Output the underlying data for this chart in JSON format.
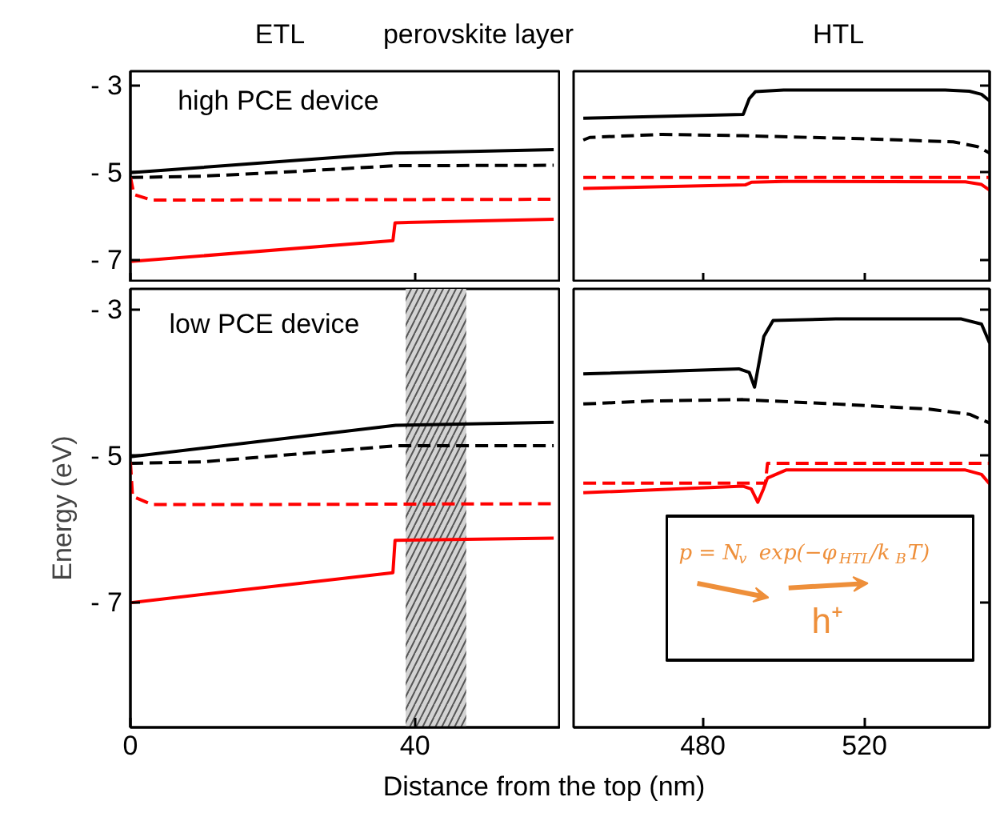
{
  "chart_data": [
    {
      "type": "line",
      "xlim": [
        0,
        60.5
      ],
      "xticks": [
        0,
        40
      ],
      "ylim": [
        -7.52,
        -2.67
      ],
      "yticks": [
        {
          "value": -3,
          "label": "- 3"
        },
        {
          "value": -5,
          "label": "- 5"
        },
        {
          "value": -7,
          "label": "- 7"
        }
      ],
      "tick_labels": "y",
      "annotations": [
        "ETL",
        "perovskite layer",
        "high PCE device"
      ],
      "series": [
        {
          "color": "#000000",
          "line_style": "solid",
          "x": [
            0,
            37.3,
            59.5
          ],
          "values": [
            -5.0,
            -4.55,
            -4.47
          ]
        },
        {
          "color": "#000000",
          "line_style": "dashed",
          "x": [
            0,
            10,
            20,
            37.3,
            59.5
          ],
          "values": [
            -5.11,
            -5.08,
            -5.0,
            -4.84,
            -4.83
          ]
        },
        {
          "color": "#ff0000",
          "line_style": "dashed",
          "x": [
            0,
            0.5,
            3,
            59.5
          ],
          "values": [
            -5.1,
            -5.5,
            -5.63,
            -5.61
          ]
        },
        {
          "color": "#ff0000",
          "line_style": "solid",
          "x": [
            0,
            36.9,
            37.2,
            59.5
          ],
          "values": [
            -7.04,
            -6.56,
            -6.15,
            -6.07
          ]
        }
      ]
    },
    {
      "type": "line",
      "xlim": [
        448,
        551
      ],
      "xticks": [
        480,
        520
      ],
      "ylim": [
        -7.52,
        -2.67
      ],
      "yticks": [
        {
          "value": -3,
          "label": null
        },
        {
          "value": -5,
          "label": null
        },
        {
          "value": -7,
          "label": null
        }
      ],
      "tick_labels": false,
      "annotations": [
        "HTL"
      ],
      "series": [
        {
          "color": "#000000",
          "line_style": "solid",
          "x": [
            450.4,
            490,
            491.5,
            493,
            500,
            540,
            546,
            549,
            551
          ],
          "values": [
            -3.75,
            -3.66,
            -3.3,
            -3.14,
            -3.1,
            -3.1,
            -3.13,
            -3.2,
            -3.35
          ]
        },
        {
          "color": "#000000",
          "line_style": "dashed",
          "x": [
            450.4,
            452,
            470,
            490,
            519,
            542,
            548,
            551
          ],
          "values": [
            -4.25,
            -4.19,
            -4.12,
            -4.15,
            -4.22,
            -4.29,
            -4.4,
            -4.55
          ]
        },
        {
          "color": "#ff0000",
          "line_style": "dashed",
          "x": [
            450.4,
            551
          ],
          "values": [
            -5.11,
            -5.11
          ]
        },
        {
          "color": "#ff0000",
          "line_style": "solid",
          "x": [
            450.4,
            490.5,
            492,
            500,
            545,
            549,
            551
          ],
          "values": [
            -5.36,
            -5.28,
            -5.22,
            -5.2,
            -5.21,
            -5.27,
            -5.4
          ]
        }
      ]
    },
    {
      "type": "line",
      "xlim": [
        0,
        60.5
      ],
      "xticks": [
        0,
        40
      ],
      "ylim": [
        -8.7,
        -2.72
      ],
      "yticks": [
        {
          "value": -3,
          "label": "- 3"
        },
        {
          "value": -5,
          "label": "- 5"
        },
        {
          "value": -7,
          "label": "- 7"
        }
      ],
      "xlabel": "Distance from the top (nm)",
      "ylabel": "Energy (eV)",
      "annotations": [
        "low PCE device"
      ],
      "bands": [
        {
          "axis": "x",
          "from": 38.7,
          "to": 47.2,
          "color": "#d3d3d3"
        }
      ],
      "series": [
        {
          "color": "#000000",
          "line_style": "solid",
          "x": [
            0,
            37.3,
            59.5
          ],
          "values": [
            -5.01,
            -4.58,
            -4.54
          ]
        },
        {
          "color": "#000000",
          "line_style": "dashed",
          "x": [
            0,
            10,
            20,
            37.3,
            59.5
          ],
          "values": [
            -5.1,
            -5.08,
            -5.0,
            -4.86,
            -4.86
          ]
        },
        {
          "color": "#ff0000",
          "line_style": "dashed",
          "x": [
            0,
            0.3,
            3,
            20,
            59.5
          ],
          "values": [
            -5.08,
            -5.55,
            -5.66,
            -5.66,
            -5.65
          ]
        },
        {
          "color": "#ff0000",
          "line_style": "solid",
          "x": [
            0,
            36.9,
            37.2,
            59.5
          ],
          "values": [
            -7.0,
            -6.59,
            -6.15,
            -6.12
          ]
        }
      ]
    },
    {
      "type": "line",
      "xlim": [
        448,
        551
      ],
      "xticks": [
        480,
        520
      ],
      "ylim": [
        -8.7,
        -2.72
      ],
      "yticks": [
        {
          "value": -3,
          "label": null
        },
        {
          "value": -5,
          "label": null
        },
        {
          "value": -7,
          "label": null
        }
      ],
      "tick_labels": "x",
      "series": [
        {
          "color": "#000000",
          "line_style": "solid",
          "x": [
            450.4,
            488.9,
            491.5,
            492.8,
            494,
            495.1,
            497.4,
            512.9,
            544,
            549,
            551
          ],
          "values": [
            -3.88,
            -3.81,
            -3.86,
            -4.06,
            -3.7,
            -3.37,
            -3.15,
            -3.13,
            -3.13,
            -3.2,
            -3.46
          ]
        },
        {
          "color": "#000000",
          "line_style": "dashed",
          "x": [
            450.4,
            466.5,
            489.9,
            513,
            536,
            546,
            551
          ],
          "values": [
            -4.29,
            -4.25,
            -4.23,
            -4.29,
            -4.36,
            -4.43,
            -4.55
          ]
        },
        {
          "color": "#ff0000",
          "line_style": "dashed",
          "x": [
            450.4,
            495.5,
            496,
            551
          ],
          "values": [
            -5.37,
            -5.37,
            -5.1,
            -5.1
          ]
        },
        {
          "color": "#ff0000",
          "line_style": "solid",
          "x": [
            450.4,
            490,
            492,
            493.6,
            495,
            496,
            500.6,
            545,
            549,
            551
          ],
          "values": [
            -5.5,
            -5.41,
            -5.45,
            -5.63,
            -5.45,
            -5.3,
            -5.19,
            -5.19,
            -5.25,
            -5.38
          ]
        }
      ]
    },
    {
      "type": "other",
      "annotations": [
        "p = N$_{v}$ exp(−φ$_{HTL}$/k$_{B}$T)",
        "h⁺"
      ]
    }
  ]
}
